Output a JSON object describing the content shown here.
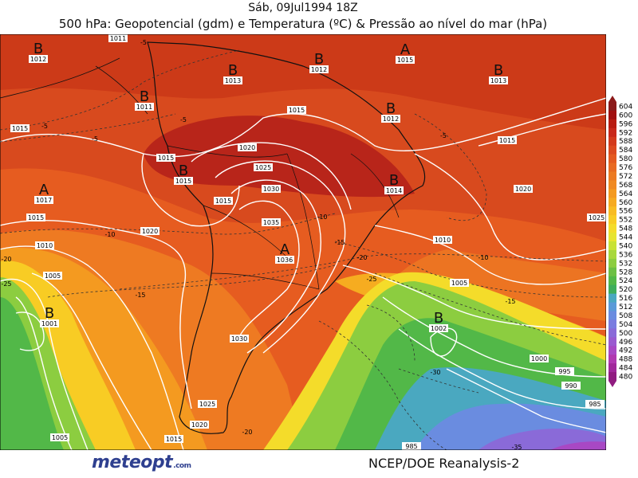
{
  "header": {
    "date_line": "Sáb, 09Jul1994 18Z",
    "title": "500 hPa: Geopotencial (gdm) e Temperatura (ºC) & Pressão ao nível do mar (hPa)"
  },
  "footer": {
    "source": "NCEP/DOE Reanalysis-2",
    "logo_text": "meteopt",
    "logo_suffix": ".com"
  },
  "colorbar": {
    "levels": [
      "604",
      "600",
      "596",
      "592",
      "588",
      "584",
      "580",
      "576",
      "572",
      "568",
      "564",
      "560",
      "556",
      "552",
      "548",
      "544",
      "540",
      "536",
      "532",
      "528",
      "524",
      "520",
      "516",
      "512",
      "508",
      "504",
      "500",
      "496",
      "492",
      "488",
      "484",
      "480"
    ],
    "colors": [
      "#8b1a1a",
      "#a01010",
      "#b81c12",
      "#c8281a",
      "#d33a1c",
      "#dc4a1f",
      "#e45a20",
      "#e86a22",
      "#ec7a22",
      "#f08a22",
      "#f49a20",
      "#f6aa20",
      "#f8bc22",
      "#f8cc24",
      "#f4dc2a",
      "#e6e430",
      "#c8e236",
      "#a8d83c",
      "#8ccd40",
      "#6cc044",
      "#52b848",
      "#3eae5c",
      "#4aa8c0",
      "#5a9ad8",
      "#6a8ce0",
      "#7a7ce0",
      "#8a6ad8",
      "#9a5ad0",
      "#a848c4",
      "#b038b0",
      "#a0289a",
      "#901c80"
    ]
  },
  "pressure_centers": [
    {
      "type": "B",
      "value": "1012"
    },
    {
      "type": "B",
      "value": "1011"
    },
    {
      "type": "B",
      "value": "1013"
    },
    {
      "type": "B",
      "value": "1012"
    },
    {
      "type": "A",
      "value": "1015"
    },
    {
      "type": "B",
      "value": "1013"
    },
    {
      "type": "B",
      "value": "1011"
    },
    {
      "type": "B",
      "value": "1012"
    },
    {
      "type": "B",
      "value": "1015"
    },
    {
      "type": "A",
      "value": "1017"
    },
    {
      "type": "B",
      "value": "1014"
    },
    {
      "type": "A",
      "value": "1036"
    },
    {
      "type": "B",
      "value": "1001"
    },
    {
      "type": "B",
      "value": "1002"
    }
  ],
  "isobar_labels": [
    "1015",
    "1015",
    "1015",
    "1020",
    "1025",
    "1030",
    "1035",
    "1015",
    "1015",
    "1015",
    "1020",
    "1010",
    "1005",
    "1030",
    "1025",
    "1020",
    "1015",
    "1005",
    "1010",
    "1005",
    "1000",
    "995",
    "990",
    "985",
    "985",
    "1020",
    "1025"
  ],
  "temperature_labels": [
    "-5",
    "-5",
    "-5",
    "-5",
    "-10",
    "-10",
    "-10",
    "-15",
    "-15",
    "-15",
    "-20",
    "-20",
    "-25",
    "-25",
    "-30",
    "-35",
    "-5",
    "-20"
  ]
}
